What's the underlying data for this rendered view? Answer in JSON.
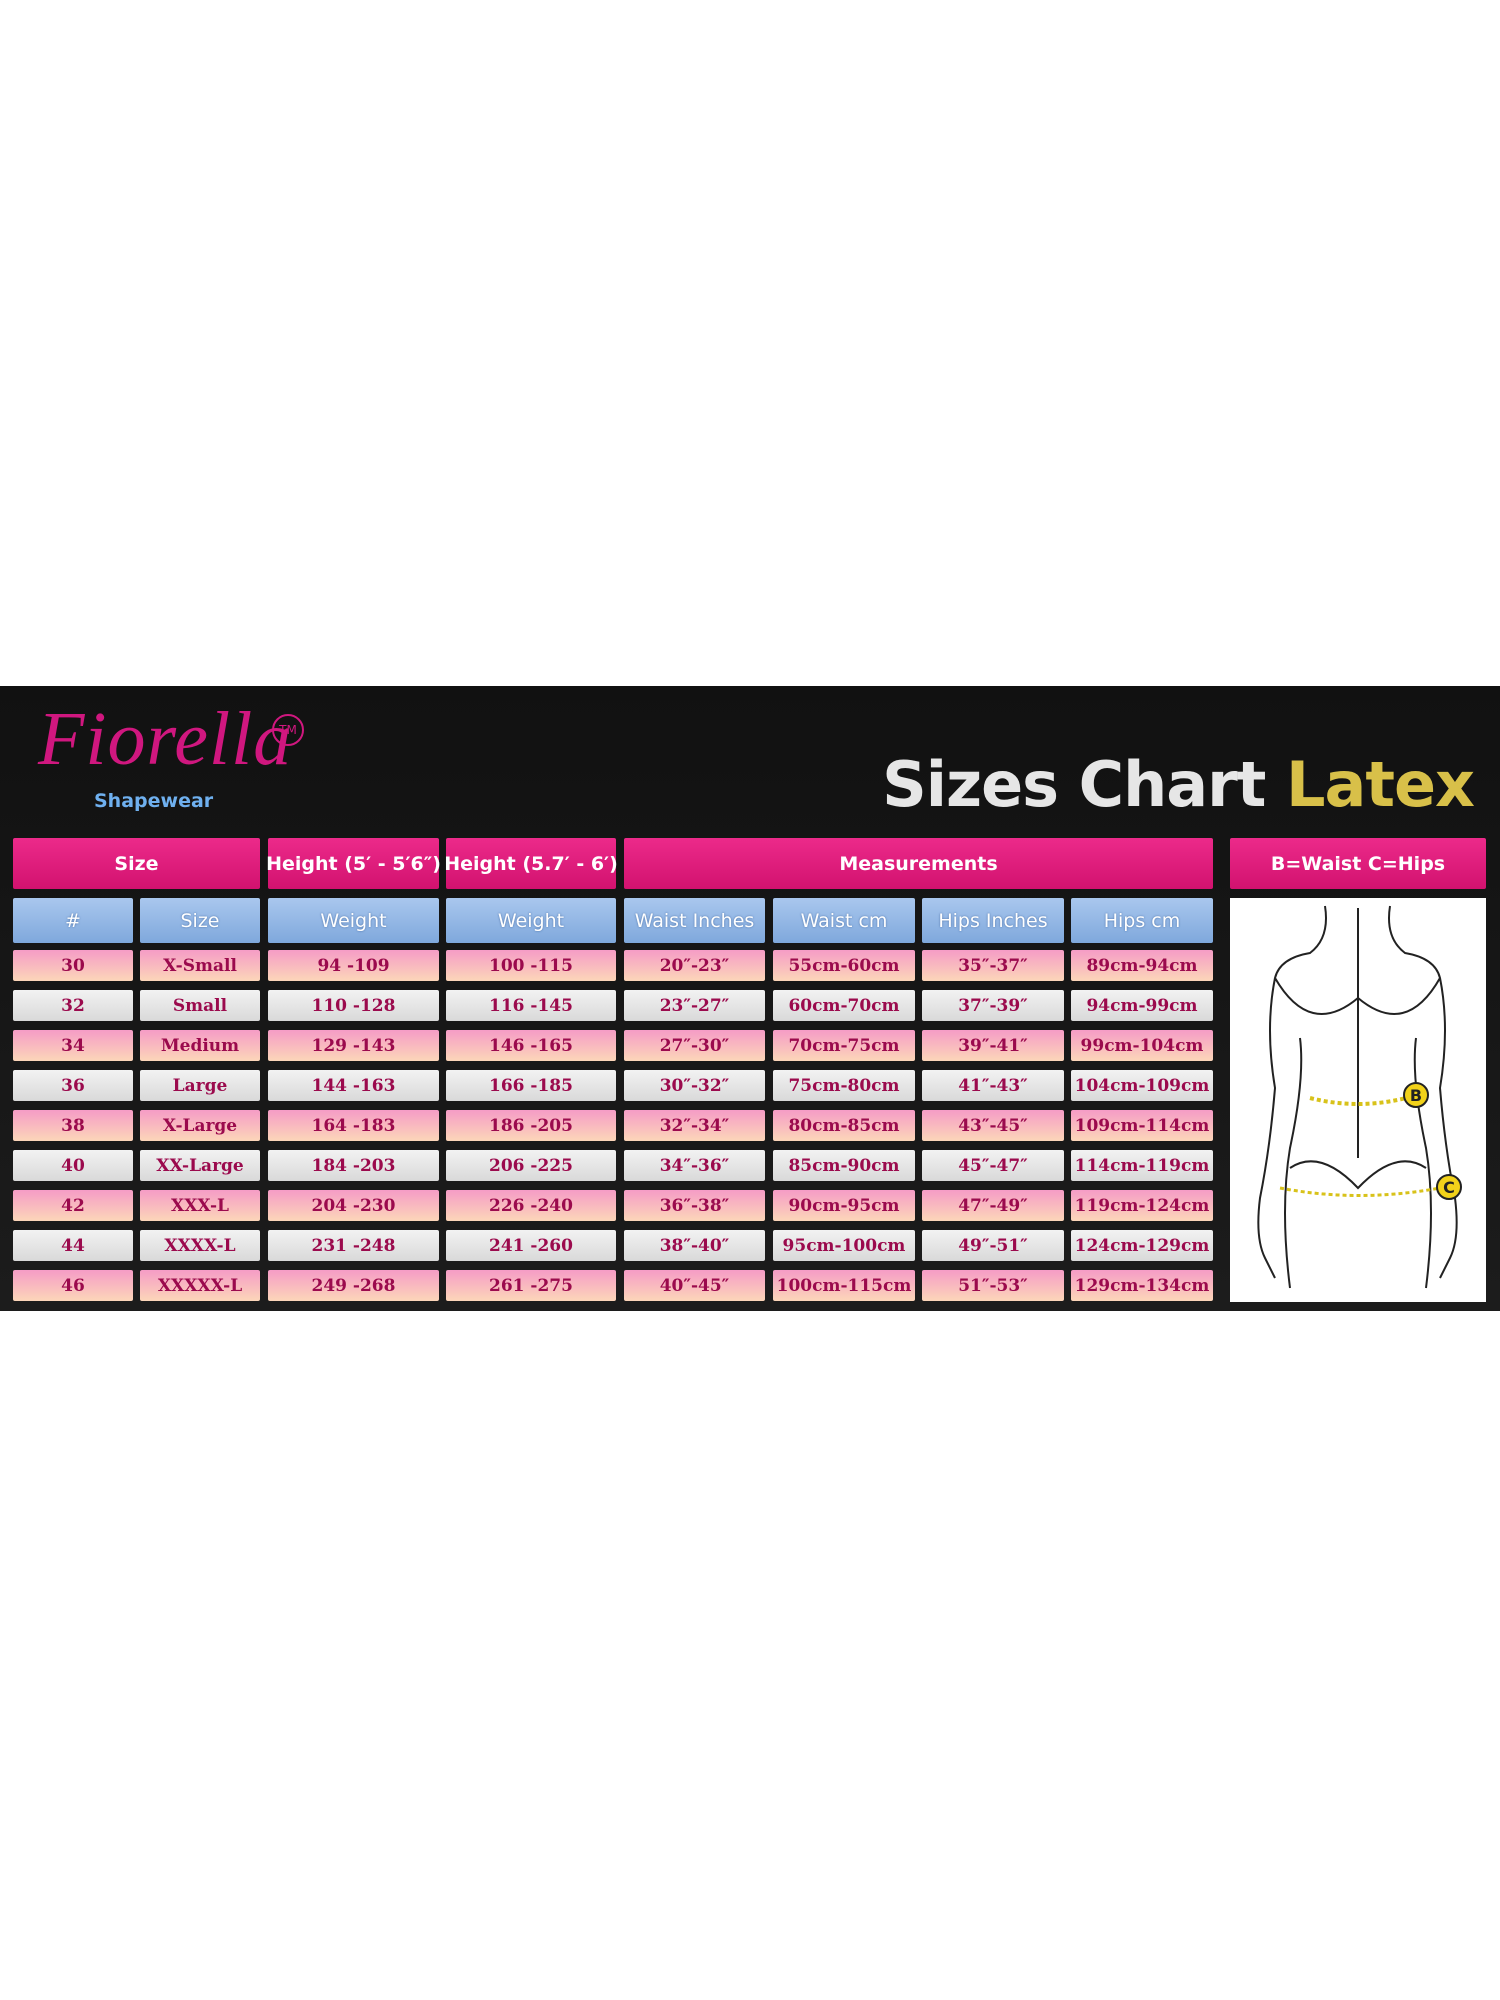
{
  "header": {
    "logo": "Fiorella",
    "trademark": "TM",
    "tagline": "Shapewear",
    "title": "Sizes Chart",
    "title_accent": "Latex"
  },
  "table": {
    "group_headers": [
      "Size",
      "Height (5′ - 5′6″)",
      "Height (5.7′ - 6′)",
      "Measurements",
      "B=Waist  C=Hips"
    ],
    "columns": [
      "#",
      "Size",
      "Weight",
      "Weight",
      "Waist Inches",
      "Waist cm",
      "Hips Inches",
      "Hips cm"
    ],
    "rows": [
      [
        "30",
        "X-Small",
        "94 -109",
        "100 -115",
        "20″-23″",
        "55cm-60cm",
        "35″-37″",
        "89cm-94cm"
      ],
      [
        "32",
        "Small",
        "110 -128",
        "116 -145",
        "23″-27″",
        "60cm-70cm",
        "37″-39″",
        "94cm-99cm"
      ],
      [
        "34",
        "Medium",
        "129 -143",
        "146 -165",
        "27″-30″",
        "70cm-75cm",
        "39″-41″",
        "99cm-104cm"
      ],
      [
        "36",
        "Large",
        "144 -163",
        "166 -185",
        "30″-32″",
        "75cm-80cm",
        "41″-43″",
        "104cm-109cm"
      ],
      [
        "38",
        "X-Large",
        "164 -183",
        "186 -205",
        "32″-34″",
        "80cm-85cm",
        "43″-45″",
        "109cm-114cm"
      ],
      [
        "40",
        "XX-Large",
        "184 -203",
        "206 -225",
        "34″-36″",
        "85cm-90cm",
        "45″-47″",
        "114cm-119cm"
      ],
      [
        "42",
        "XXX-L",
        "204 -230",
        "226 -240",
        "36″-38″",
        "90cm-95cm",
        "47″-49″",
        "119cm-124cm"
      ],
      [
        "44",
        "XXXX-L",
        "231 -248",
        "241 -260",
        "38″-40″",
        "95cm-100cm",
        "49″-51″",
        "124cm-129cm"
      ],
      [
        "46",
        "XXXXX-L",
        "249 -268",
        "261 -275",
        "40″-45″",
        "100cm-115cm",
        "51″-53″",
        "129cm-134cm"
      ]
    ]
  },
  "figure": {
    "waist_marker": "B",
    "hips_marker": "C"
  }
}
